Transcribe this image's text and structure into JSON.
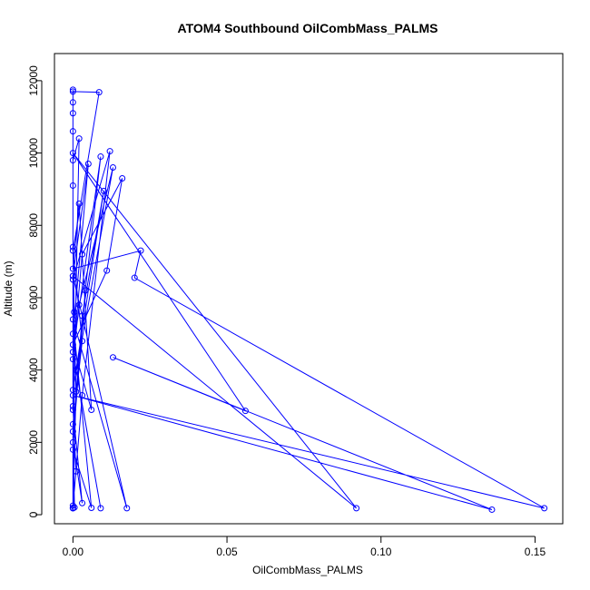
{
  "chart_data": {
    "type": "line",
    "title": "ATOM4 Southbound OilCombMass_PALMS",
    "xlabel": "OilCombMass_PALMS",
    "ylabel": "Altitude (m)",
    "xlim": [
      -0.006,
      0.159
    ],
    "ylim": [
      -250,
      12750
    ],
    "xticks": [
      0.0,
      0.05,
      0.1,
      0.15
    ],
    "xtick_labels": [
      "0.00",
      "0.05",
      "0.10",
      "0.15"
    ],
    "yticks": [
      0,
      2000,
      4000,
      6000,
      8000,
      10000,
      12000
    ],
    "ytick_labels": [
      "0",
      "2000",
      "4000",
      "6000",
      "8000",
      "10000",
      "12000"
    ],
    "grid": false,
    "series_color": "#0000ff",
    "marker": "open-circle",
    "series": [
      {
        "points": [
          [
            0.0,
            180
          ],
          [
            0.0,
            250
          ],
          [
            0.001,
            1200
          ],
          [
            0.0,
            3000
          ],
          [
            0.0004,
            5600
          ],
          [
            0.0,
            7400
          ],
          [
            0.0,
            9100
          ],
          [
            0.0,
            10600
          ],
          [
            0.0,
            11750
          ],
          [
            0.0,
            11700
          ],
          [
            0.0085,
            11680
          ],
          [
            0.0,
            7300
          ],
          [
            0.003,
            4800
          ],
          [
            0.0,
            2500
          ],
          [
            0.0005,
            200
          ],
          [
            0.0,
            180
          ],
          [
            0.001,
            3400
          ],
          [
            0.0,
            6600
          ],
          [
            0.005,
            9700
          ],
          [
            0.0,
            5000
          ],
          [
            0.0,
            2900
          ],
          [
            0.003,
            320
          ],
          [
            0.0,
            2000
          ],
          [
            0.004,
            6200
          ],
          [
            0.009,
            9900
          ],
          [
            0.0,
            4500
          ],
          [
            0.009,
            180
          ],
          [
            0.001,
            4000
          ],
          [
            0.01,
            8950
          ],
          [
            0.003,
            5500
          ],
          [
            0.0,
            2300
          ],
          [
            0.0,
            190
          ],
          [
            0.003,
            3300
          ],
          [
            0.012,
            10050
          ],
          [
            0.0,
            6500
          ],
          [
            0.0,
            3450
          ],
          [
            0.013,
            9600
          ],
          [
            0.002,
            5800
          ],
          [
            0.0,
            4300
          ],
          [
            0.003,
            7200
          ],
          [
            0.016,
            9300
          ],
          [
            0.011,
            6750
          ],
          [
            0.0,
            4700
          ],
          [
            0.006,
            2900
          ],
          [
            0.002,
            8600
          ],
          [
            0.0,
            6800
          ],
          [
            0.022,
            7300
          ],
          [
            0.02,
            6550
          ],
          [
            0.153,
            180
          ],
          [
            0.0,
            3300
          ],
          [
            0.136,
            140
          ],
          [
            0.013,
            4350
          ],
          [
            0.056,
            2870
          ],
          [
            0.0,
            10000
          ],
          [
            0.092,
            180
          ],
          [
            0.0,
            6600
          ],
          [
            0.0175,
            180
          ],
          [
            0.0,
            5400
          ],
          [
            0.006,
            190
          ],
          [
            0.0,
            1800
          ],
          [
            0.002,
            10400
          ],
          [
            0.0,
            9800
          ],
          [
            0.0,
            11400
          ],
          [
            0.0,
            11100
          ]
        ]
      }
    ]
  }
}
